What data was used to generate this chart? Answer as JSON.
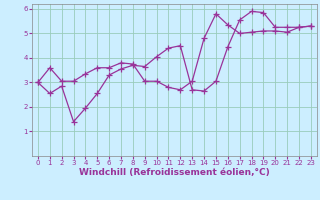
{
  "line1_x": [
    0,
    1,
    2,
    3,
    4,
    5,
    6,
    7,
    8,
    9,
    10,
    11,
    12,
    13,
    14,
    15,
    16,
    17,
    18,
    19,
    20,
    21,
    22,
    23
  ],
  "line1_y": [
    3.0,
    3.6,
    3.05,
    3.05,
    3.35,
    3.6,
    3.6,
    3.8,
    3.75,
    3.05,
    3.05,
    2.8,
    2.7,
    3.05,
    4.8,
    5.8,
    5.35,
    5.0,
    5.05,
    5.1,
    5.1,
    5.05,
    5.25,
    5.3
  ],
  "line2_x": [
    0,
    1,
    2,
    3,
    4,
    5,
    6,
    7,
    8,
    9,
    10,
    11,
    12,
    13,
    14,
    15,
    16,
    17,
    18,
    19,
    20,
    21,
    22,
    23
  ],
  "line2_y": [
    3.0,
    2.55,
    2.85,
    1.4,
    1.95,
    2.55,
    3.3,
    3.55,
    3.7,
    3.65,
    4.05,
    4.4,
    4.5,
    2.7,
    2.65,
    3.05,
    4.45,
    5.55,
    5.9,
    5.85,
    5.25,
    5.25,
    5.25,
    5.3
  ],
  "line_color": "#993399",
  "bg_color": "#cceeff",
  "grid_color": "#99ccbb",
  "xlim": [
    -0.5,
    23.5
  ],
  "ylim": [
    0,
    6.2
  ],
  "xlabel": "Windchill (Refroidissement éolien,°C)",
  "xtick_labels": [
    "0",
    "1",
    "2",
    "3",
    "4",
    "5",
    "6",
    "7",
    "8",
    "9",
    "10",
    "11",
    "12",
    "13",
    "14",
    "15",
    "16",
    "17",
    "18",
    "19",
    "20",
    "21",
    "22",
    "23"
  ],
  "yticks": [
    1,
    2,
    3,
    4,
    5,
    6
  ],
  "marker": "+",
  "markersize": 4,
  "linewidth": 0.9,
  "xlabel_fontsize": 6.5,
  "tick_fontsize": 5.0
}
